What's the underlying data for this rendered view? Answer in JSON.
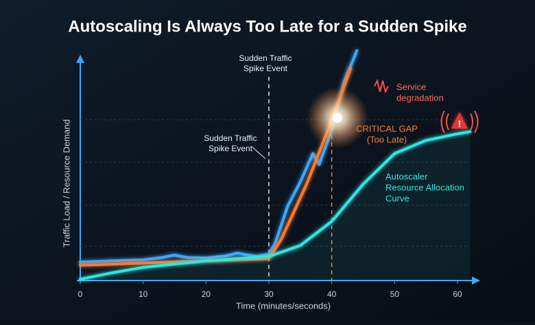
{
  "chart_data": {
    "type": "line",
    "title": "Autoscaling Is Always Too Late for a Sudden Spike",
    "x_label": "Time (minutes/seconds)",
    "y_label": "Traffic Load / Resource Demand",
    "xlim": [
      0,
      62
    ],
    "xticks": [
      0,
      10,
      20,
      30,
      40,
      50,
      60
    ],
    "ylim": [
      0,
      110
    ],
    "series": [
      {
        "color": "#3aa8ff",
        "x": [
          0,
          5,
          10,
          13,
          15,
          17,
          20,
          23,
          25,
          28,
          30,
          31,
          33,
          35,
          37,
          38,
          40,
          42,
          44
        ],
        "values": [
          8.4,
          9,
          9.4,
          10.5,
          11.6,
          10.5,
          10.3,
          11.2,
          12.5,
          11,
          12,
          17,
          34,
          45,
          58,
          53,
          69,
          91,
          105
        ]
      },
      {
        "color": "#ff7a2e",
        "x": [
          0,
          10,
          20,
          30,
          32,
          36,
          40,
          43
        ],
        "values": [
          7,
          8,
          9,
          10,
          19,
          44,
          73,
          97
        ]
      },
      {
        "color": "#2ee6e0",
        "x": [
          0,
          5,
          10,
          20,
          30,
          35,
          40,
          45,
          50,
          55,
          60,
          62
        ],
        "values": [
          0.6,
          3.5,
          6,
          9,
          11,
          16,
          27,
          44,
          58,
          64,
          67,
          68
        ]
      }
    ],
    "vlines": [
      {
        "x": 30,
        "color": "#dddddd"
      },
      {
        "x": 40,
        "color": "#ff7a2e"
      }
    ],
    "annotations": [
      {
        "lines": [
          "Sudden Traffic",
          "Spike Event"
        ],
        "color": "#e8eef5"
      },
      {
        "lines": [
          "Sudden Traffic",
          "Spike Event"
        ],
        "color": "#e8eef5"
      },
      {
        "lines": [
          "Service",
          "degradation"
        ],
        "color": "#ff6a55"
      },
      {
        "lines": [
          "CRITICAL GAP",
          "(Too Late)"
        ],
        "color": "#ff7a2e"
      },
      {
        "lines": [
          "Autoscaler",
          "Resource Allocation",
          "Curve"
        ],
        "color": "#2ee6e0"
      },
      {
        "lines": [
          "!"
        ],
        "color": "#ffffff"
      }
    ]
  }
}
